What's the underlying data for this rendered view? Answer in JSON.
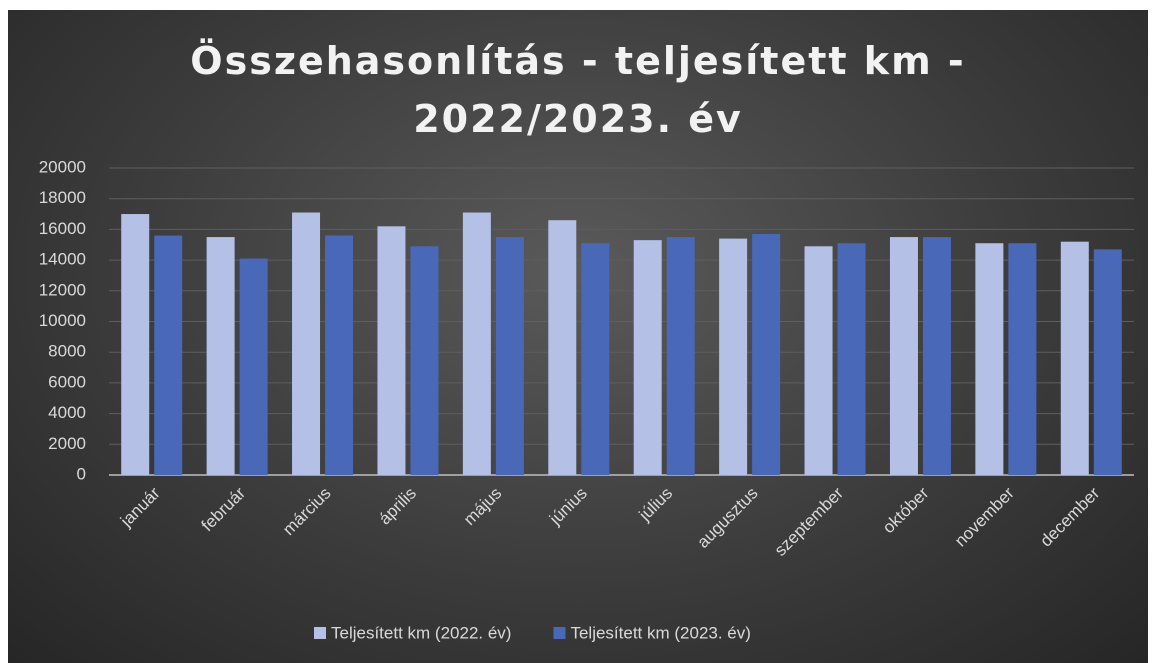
{
  "chart_data": {
    "type": "bar",
    "title": "Összehasonlítás - teljesített km - 2022/2023. év",
    "categories": [
      "január",
      "február",
      "március",
      "április",
      "május",
      "június",
      "július",
      "augusztus",
      "szeptember",
      "október",
      "november",
      "december"
    ],
    "series": [
      {
        "name": "Teljesített km (2022. év)",
        "color": "#b4c0e6",
        "values": [
          17000,
          15500,
          17100,
          16200,
          17100,
          16600,
          15300,
          15400,
          14900,
          15500,
          15100,
          15200
        ]
      },
      {
        "name": "Teljesített km (2023. év)",
        "color": "#4a68b8",
        "values": [
          15600,
          14100,
          15600,
          14900,
          15500,
          15100,
          15500,
          15700,
          15100,
          15500,
          15100,
          14700
        ]
      }
    ],
    "ylim": [
      0,
      20000
    ],
    "yticks": [
      0,
      2000,
      4000,
      6000,
      8000,
      10000,
      12000,
      14000,
      16000,
      18000,
      20000
    ],
    "grid": true,
    "legend": "bottom"
  }
}
